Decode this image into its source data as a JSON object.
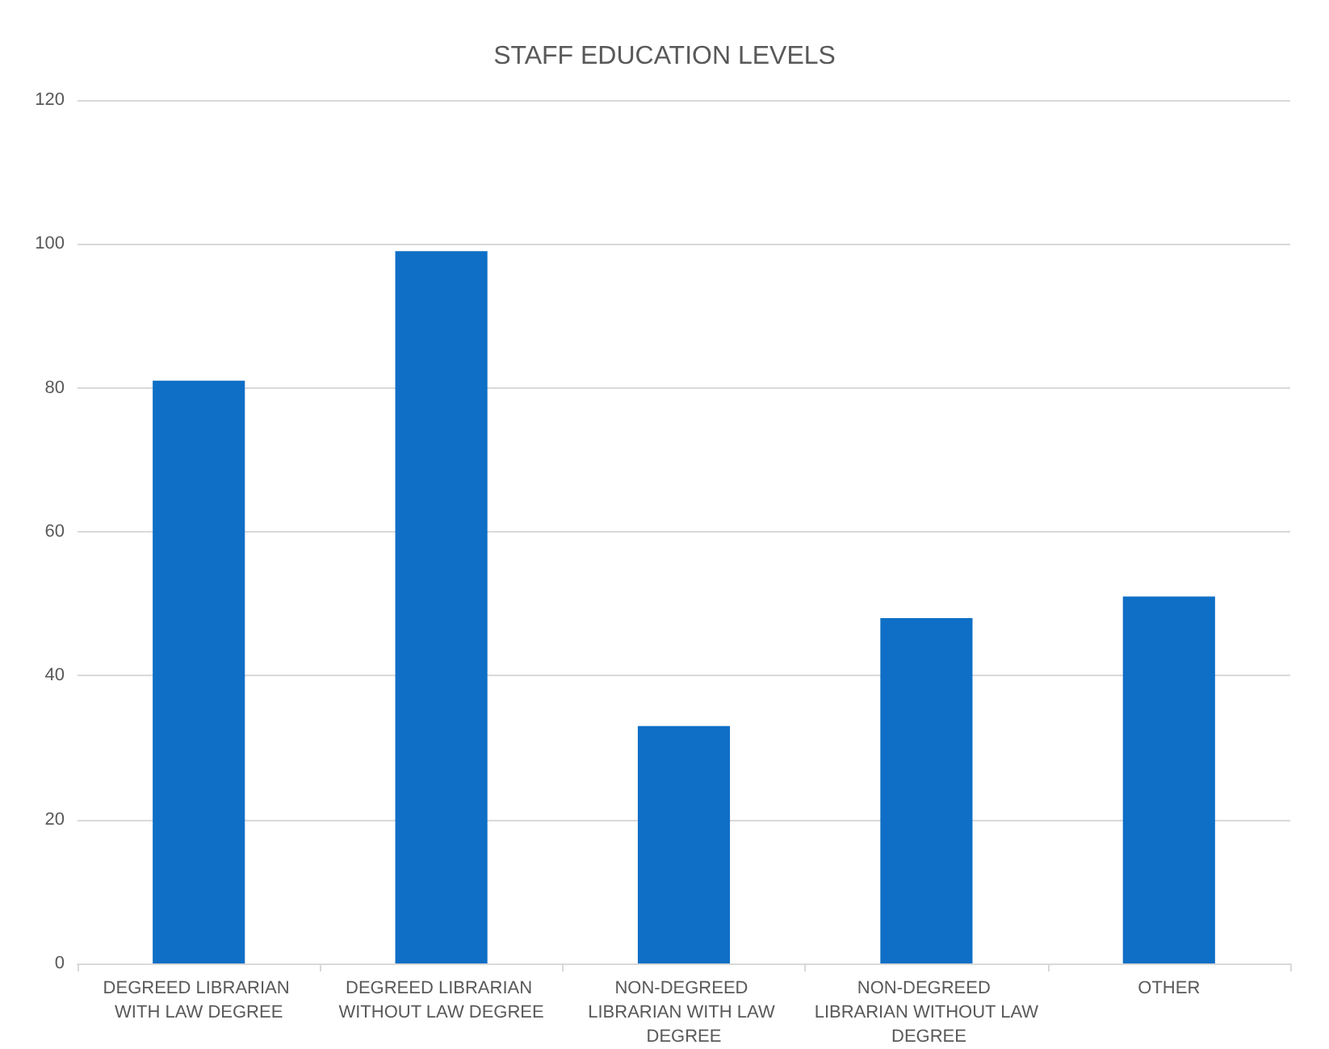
{
  "chart_data": {
    "type": "bar",
    "title": "STAFF EDUCATION LEVELS",
    "categories": [
      "DEGREED LIBRARIAN WITH LAW DEGREE",
      "DEGREED LIBRARIAN WITHOUT LAW DEGREE",
      "NON-DEGREED LIBRARIAN WITH LAW DEGREE",
      "NON-DEGREED LIBRARIAN WITHOUT LAW DEGREE",
      "OTHER"
    ],
    "values": [
      81,
      99,
      33,
      48,
      51
    ],
    "color": "#0f6fc6",
    "ylim": [
      0,
      120
    ],
    "yticks": [
      0,
      20,
      40,
      60,
      80,
      100,
      120
    ],
    "grid": "y"
  }
}
